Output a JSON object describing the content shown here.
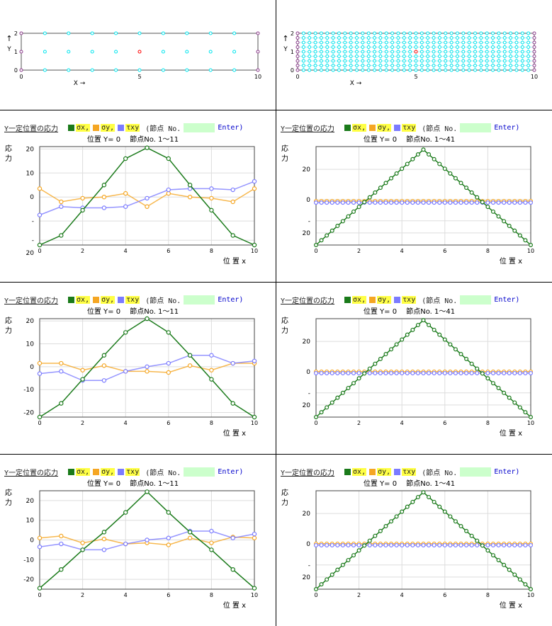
{
  "mesh": {
    "y_arrow": "↑",
    "y_label": "Y",
    "x_label": "X →",
    "x_ticks": [
      "0",
      "5",
      "10"
    ],
    "y_ticks": [
      "0",
      "1",
      "2"
    ]
  },
  "header": {
    "title": "Y一定位置の応力",
    "sx_label": "σx,",
    "sy_label": "σy,",
    "txy_label": "τxy",
    "node_label": "(節点 No.",
    "node_value": "",
    "enter_label": "Enter)"
  },
  "chart_text": {
    "ylabel": "応\n力",
    "xlabel": "位 置 x"
  },
  "colors": {
    "sx": "#1a7a1a",
    "sy": "#f5a623",
    "txy": "#7b7bff",
    "mesh_node": "#00e5ee",
    "mesh_corner": "#8b3a8b",
    "mesh_load": "#ff0000"
  },
  "chart_data": [
    {
      "type": "line",
      "subtitle": "位置 Y= 0　 節点No. 1〜11",
      "x": [
        0,
        1,
        2,
        3,
        4,
        5,
        6,
        7,
        8,
        9,
        10
      ],
      "xlim": [
        0,
        10
      ],
      "ylim": [
        -20,
        21
      ],
      "yticks": [
        "20",
        "10",
        "0",
        "-",
        "-"
      ],
      "ytick_vals": [
        20,
        10,
        0,
        -10,
        -18
      ],
      "extra_bottom": "20",
      "series": [
        {
          "name": "σx",
          "values": [
            -20,
            -16,
            -5.5,
            5,
            16,
            20.5,
            16,
            5,
            -5.5,
            -16,
            -20
          ]
        },
        {
          "name": "σy",
          "values": [
            3.5,
            -2,
            -0.5,
            0,
            1.5,
            -4,
            1.5,
            0,
            -0.5,
            -2,
            3.5
          ]
        },
        {
          "name": "τxy",
          "values": [
            -7.5,
            -4,
            -4.5,
            -4.5,
            -4,
            -0.5,
            3,
            3.5,
            3.5,
            3,
            6.5
          ]
        }
      ]
    },
    {
      "type": "line",
      "subtitle": "位置 Y= 0　 節点No. 1〜41",
      "xlim": [
        0,
        10
      ],
      "ylim": [
        -30,
        35
      ],
      "yticks": [
        "20",
        "0",
        "-",
        "20"
      ],
      "ytick_vals": [
        20,
        0,
        -14,
        -22
      ],
      "xticks": [
        "0",
        "2",
        "4",
        "6",
        "8",
        "10"
      ],
      "series": [
        {
          "name": "σx",
          "peak": 33,
          "base": -30
        },
        {
          "name": "σy",
          "values_const": -1
        },
        {
          "name": "τxy",
          "values_const": -2
        }
      ]
    },
    {
      "type": "line",
      "subtitle": "位置 Y= 0　 節点No. 1〜11",
      "x": [
        0,
        1,
        2,
        3,
        4,
        5,
        6,
        7,
        8,
        9,
        10
      ],
      "xlim": [
        0,
        10
      ],
      "ylim": [
        -22,
        21
      ],
      "yticks": [
        "20",
        "10",
        "0",
        "-10",
        "-20"
      ],
      "ytick_vals": [
        20,
        10,
        0,
        -10,
        -20
      ],
      "series": [
        {
          "name": "σx",
          "values": [
            -22,
            -16,
            -5.5,
            5,
            15,
            21,
            15,
            5,
            -5.5,
            -16,
            -22
          ]
        },
        {
          "name": "σy",
          "values": [
            1.5,
            1.5,
            -1.5,
            0.5,
            -2,
            -2,
            -2.5,
            0.5,
            -1.5,
            1.5,
            1.5
          ]
        },
        {
          "name": "τxy",
          "values": [
            -3,
            -2,
            -6,
            -6,
            -2,
            0,
            1.5,
            5,
            5,
            1.5,
            2.5
          ]
        }
      ]
    },
    {
      "type": "line",
      "subtitle": "位置 Y= 0　 節点No. 1〜41",
      "xlim": [
        0,
        10
      ],
      "ylim": [
        -30,
        35
      ],
      "yticks": [
        "20",
        "0",
        "-",
        "20"
      ],
      "ytick_vals": [
        20,
        0,
        -14,
        -22
      ],
      "xticks": [
        "0",
        "2",
        "4",
        "6",
        "8",
        "10"
      ],
      "series": [
        {
          "name": "σx",
          "peak": 34,
          "base": -30
        },
        {
          "name": "σy",
          "values_const": 0
        },
        {
          "name": "τxy",
          "values_const": -1
        }
      ]
    },
    {
      "type": "line",
      "subtitle": "位置 Y= 0　 節点No. 1〜11",
      "x": [
        0,
        1,
        2,
        3,
        4,
        5,
        6,
        7,
        8,
        9,
        10
      ],
      "xlim": [
        0,
        10
      ],
      "ylim": [
        -25,
        25
      ],
      "yticks": [
        "20",
        "10",
        "0",
        "-10",
        "-20"
      ],
      "ytick_vals": [
        20,
        10,
        0,
        -10,
        -20
      ],
      "series": [
        {
          "name": "σx",
          "values": [
            -24.5,
            -15,
            -5,
            4,
            14,
            24.5,
            14,
            4,
            -5,
            -15,
            -24.5
          ]
        },
        {
          "name": "σy",
          "values": [
            1,
            2,
            -1.5,
            0.5,
            -2,
            -1.5,
            -2.5,
            1,
            -1.5,
            1.5,
            1
          ]
        },
        {
          "name": "τxy",
          "values": [
            -3.5,
            -2,
            -5,
            -5,
            -2,
            0,
            1,
            4.5,
            4.5,
            1,
            3
          ]
        }
      ]
    },
    {
      "type": "line",
      "subtitle": "位置 Y= 0　 節点No. 1〜41",
      "xlim": [
        0,
        10
      ],
      "ylim": [
        -30,
        35
      ],
      "yticks": [
        "20",
        "0",
        "-",
        "20"
      ],
      "ytick_vals": [
        20,
        0,
        -14,
        -22
      ],
      "xticks": [
        "0",
        "2",
        "4",
        "6",
        "8",
        "10"
      ],
      "series": [
        {
          "name": "σx",
          "peak": 34,
          "base": -30
        },
        {
          "name": "σy",
          "values_const": 0
        },
        {
          "name": "τxy",
          "values_const": -1
        }
      ]
    }
  ]
}
